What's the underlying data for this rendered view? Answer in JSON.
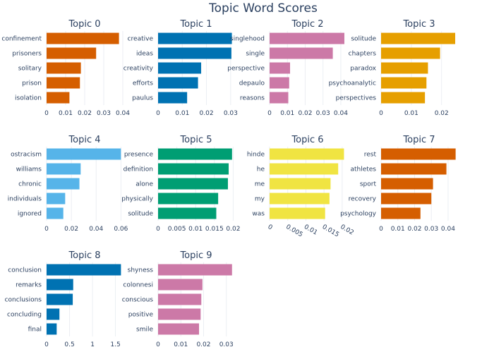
{
  "figure": {
    "title": "Topic Word Scores"
  },
  "colors": {
    "orange": "#D55E00",
    "blue": "#0072B2",
    "pink": "#CC79A7",
    "gold": "#E69F00",
    "skyblue": "#56B4E9",
    "green": "#009E73",
    "yellow": "#F0E442"
  },
  "chart_data": [
    {
      "type": "bar",
      "orientation": "horizontal",
      "title": "Topic 0",
      "color": "orange",
      "categories": [
        "confinement",
        "prisoners",
        "solitary",
        "prison",
        "isolation"
      ],
      "values": [
        0.038,
        0.026,
        0.018,
        0.0175,
        0.012
      ],
      "xlim": [
        0,
        0.04
      ],
      "ticks": [
        0,
        0.01,
        0.02,
        0.03,
        0.04
      ],
      "tick_labels": [
        "0",
        "0.01",
        "0.02",
        "0.03",
        "0.04"
      ]
    },
    {
      "type": "bar",
      "orientation": "horizontal",
      "title": "Topic 1",
      "color": "blue",
      "categories": [
        "creative",
        "ideas",
        "creativity",
        "efforts",
        "paulus"
      ],
      "values": [
        0.0305,
        0.0303,
        0.0178,
        0.0165,
        0.012
      ],
      "xlim": [
        0,
        0.0315
      ],
      "ticks": [
        0,
        0.01,
        0.02,
        0.03
      ],
      "tick_labels": [
        "0",
        "0.01",
        "0.02",
        "0.03"
      ]
    },
    {
      "type": "bar",
      "orientation": "horizontal",
      "title": "Topic 2",
      "color": "pink",
      "categories": [
        "singlehood",
        "single",
        "perspective",
        "depaulo",
        "reasons"
      ],
      "values": [
        0.042,
        0.0355,
        0.0115,
        0.011,
        0.0105
      ],
      "xlim": [
        0,
        0.0428
      ],
      "ticks": [
        0,
        0.01,
        0.02,
        0.03,
        0.04
      ],
      "tick_labels": [
        "0",
        "0.01",
        "0.02",
        "0.03",
        "0.04"
      ]
    },
    {
      "type": "bar",
      "orientation": "horizontal",
      "title": "Topic 3",
      "color": "gold",
      "categories": [
        "solitude",
        "chapters",
        "paradox",
        "psychoanalytic",
        "perspectives"
      ],
      "values": [
        0.0245,
        0.0195,
        0.0155,
        0.015,
        0.0145
      ],
      "xlim": [
        0,
        0.0252
      ],
      "ticks": [
        0,
        0.01,
        0.02
      ],
      "tick_labels": [
        "0",
        "0.01",
        "0.02"
      ]
    },
    {
      "type": "bar",
      "orientation": "horizontal",
      "title": "Topic 4",
      "color": "skyblue",
      "categories": [
        "ostracism",
        "williams",
        "chronic",
        "individuals",
        "ignored"
      ],
      "values": [
        0.06,
        0.0275,
        0.0265,
        0.015,
        0.0135
      ],
      "xlim": [
        0,
        0.0615
      ],
      "ticks": [
        0,
        0.02,
        0.04,
        0.06
      ],
      "tick_labels": [
        "0",
        "0.02",
        "0.04",
        "0.06"
      ]
    },
    {
      "type": "bar",
      "orientation": "horizontal",
      "title": "Topic 5",
      "color": "green",
      "categories": [
        "presence",
        "definition",
        "alone",
        "physically",
        "solitude"
      ],
      "values": [
        0.0197,
        0.0188,
        0.0186,
        0.016,
        0.0155
      ],
      "xlim": [
        0,
        0.0203
      ],
      "ticks": [
        0,
        0.005,
        0.01,
        0.015,
        0.02
      ],
      "tick_labels": [
        "0",
        "0.005",
        "0.01",
        "0.015",
        "0.02"
      ]
    },
    {
      "type": "bar",
      "orientation": "horizontal",
      "title": "Topic 6",
      "color": "yellow",
      "categories": [
        "hinde",
        "he",
        "me",
        "my",
        "was"
      ],
      "values": [
        0.0205,
        0.0189,
        0.0168,
        0.0165,
        0.0153
      ],
      "xlim": [
        0,
        0.021
      ],
      "ticks": [
        0,
        0.005,
        0.01,
        0.015,
        0.02
      ],
      "tick_labels": [
        "0",
        "0.005",
        "0.01",
        "0.015",
        "0.02"
      ],
      "tick_rotation": 30
    },
    {
      "type": "bar",
      "orientation": "horizontal",
      "title": "Topic 7",
      "color": "orange",
      "categories": [
        "rest",
        "athletes",
        "sport",
        "recovery",
        "psychology"
      ],
      "values": [
        0.0445,
        0.039,
        0.031,
        0.03,
        0.0235
      ],
      "xlim": [
        0,
        0.0455
      ],
      "ticks": [
        0,
        0.01,
        0.02,
        0.03,
        0.04
      ],
      "tick_labels": [
        "0",
        "0.01",
        "0.02",
        "0.03",
        "0.04"
      ]
    },
    {
      "type": "bar",
      "orientation": "horizontal",
      "title": "Topic 8",
      "color": "blue",
      "categories": [
        "conclusion",
        "remarks",
        "conclusions",
        "concluding",
        "final"
      ],
      "values": [
        1.62,
        0.58,
        0.57,
        0.28,
        0.22
      ],
      "xlim": [
        0,
        1.66
      ],
      "ticks": [
        0,
        0.5,
        1,
        1.5
      ],
      "tick_labels": [
        "0",
        "0.5",
        "1",
        "1.5"
      ]
    },
    {
      "type": "bar",
      "orientation": "horizontal",
      "title": "Topic 9",
      "color": "pink",
      "categories": [
        "shyness",
        "colonnesi",
        "conscious",
        "positive",
        "smile"
      ],
      "values": [
        0.0325,
        0.0195,
        0.019,
        0.0187,
        0.018
      ],
      "xlim": [
        0,
        0.0335
      ],
      "ticks": [
        0,
        0.01,
        0.02,
        0.03
      ],
      "tick_labels": [
        "0",
        "0.01",
        "0.02",
        "0.03"
      ]
    }
  ]
}
